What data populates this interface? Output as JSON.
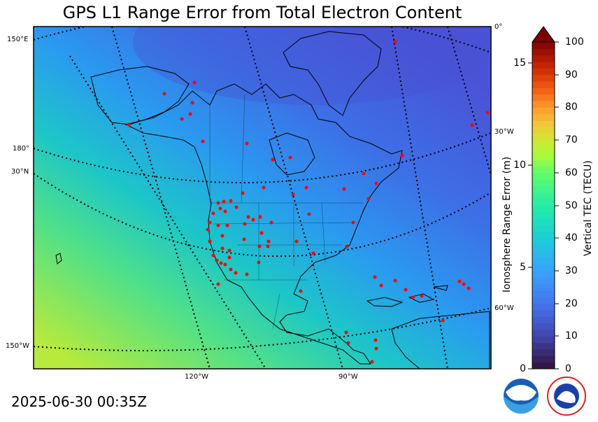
{
  "title": "GPS L1 Range Error from Total Electron Content",
  "timestamp": "2025-06-30 00:35Z",
  "graticule_labels": {
    "left": [
      "150°E",
      "180°",
      "30°N",
      "150°W"
    ],
    "bottom": [
      "120°W",
      "90°W"
    ],
    "right": [
      "0°",
      "30°W",
      "60°W"
    ]
  },
  "colorbar": {
    "left_label": "Ionosphere Range Error (m)",
    "right_label": "Vertical TEC (TECU)",
    "left_ticks": [
      "15",
      "10",
      "5",
      "0"
    ],
    "right_ticks": [
      "100",
      "90",
      "80",
      "70",
      "60",
      "50",
      "40",
      "30",
      "20",
      "10",
      "0"
    ],
    "range_tecu": [
      0,
      100
    ],
    "range_m": [
      0,
      16.2
    ],
    "extend": "max"
  },
  "logos": [
    "noaa-logo",
    "national-weather-service-logo"
  ],
  "logo_text": {
    "noaa": "NOAA",
    "nws": "NATIONAL WEATHER SERVICE"
  },
  "colors": {
    "tec_low": "#3b5fd8",
    "tec_mid": "#1fd0c0",
    "tec_high": "#b8ec3a",
    "station": "#ff0000",
    "extend_tip": "#7a0000"
  }
}
